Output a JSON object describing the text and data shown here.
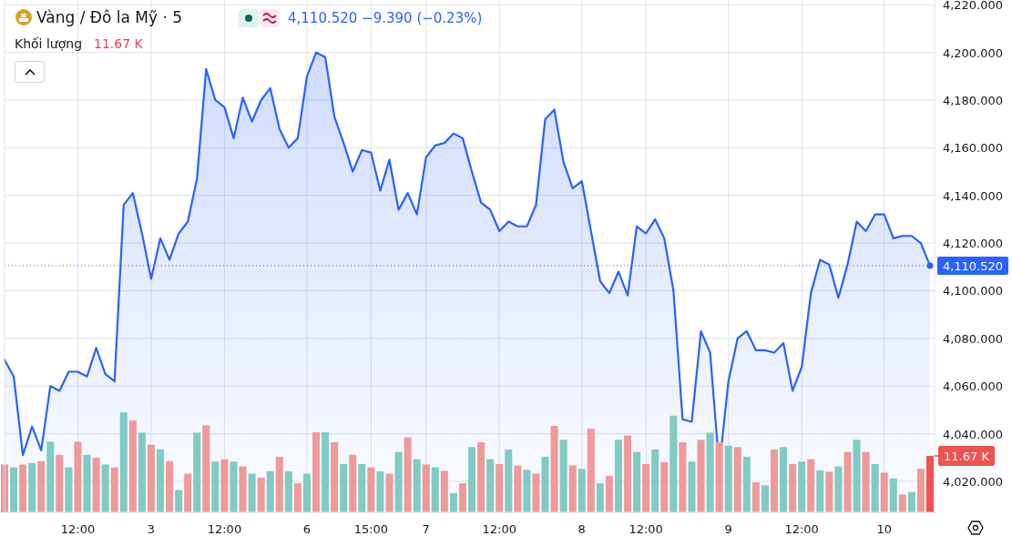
{
  "chart_data": {
    "type": "area",
    "title": "Vàng / Đô la Mỹ · 5",
    "subtitle": "4,110.520 −9.390 (−0.23%)",
    "annotations": [
      "Khối lượng",
      "11.67 K"
    ],
    "categories": [
      null,
      null,
      null,
      null,
      null,
      null,
      null,
      null,
      "12:00",
      null,
      null,
      null,
      null,
      null,
      null,
      null,
      "3",
      null,
      null,
      null,
      null,
      null,
      null,
      null,
      "12:00",
      null,
      null,
      null,
      null,
      null,
      null,
      null,
      null,
      "6",
      null,
      null,
      null,
      null,
      null,
      null,
      "15:00",
      null,
      null,
      null,
      null,
      null,
      "7",
      null,
      null,
      null,
      null,
      null,
      null,
      null,
      "12:00",
      null,
      null,
      null,
      null,
      null,
      null,
      null,
      null,
      "8",
      null,
      null,
      null,
      null,
      null,
      null,
      "12:00",
      null,
      null,
      null,
      null,
      null,
      null,
      null,
      null,
      "9",
      null,
      null,
      null,
      null,
      null,
      null,
      null,
      "12:00",
      null,
      null,
      null,
      null,
      null,
      null,
      null,
      null,
      "10",
      null,
      null,
      null,
      null,
      null
    ],
    "ylim": [
      4007,
      4222
    ],
    "yticks": [
      {
        "value": 4020,
        "label": "4,020.000"
      },
      {
        "value": 4040,
        "label": "4,040.000"
      },
      {
        "value": 4060,
        "label": "4,060.000"
      },
      {
        "value": 4080,
        "label": "4,080.000"
      },
      {
        "value": 4100,
        "label": "4,100.000"
      },
      {
        "value": 4120,
        "label": "4,120.000"
      },
      {
        "value": 4140,
        "label": "4,140.000"
      },
      {
        "value": 4160,
        "label": "4,160.000"
      },
      {
        "value": 4180,
        "label": "4,180.000"
      },
      {
        "value": 4200,
        "label": "4,200.000"
      },
      {
        "value": 4220,
        "label": "4,220.000"
      }
    ],
    "y2lim": [
      0,
      106
    ],
    "y2ticks": [
      {
        "value": 11.67,
        "label": "11.67 K"
      }
    ],
    "grid": true,
    "ref_lines": [
      {
        "axis": "y",
        "value": 4110.52,
        "label": "4,110.520",
        "color": "#2962ff",
        "line_style": "dotted"
      }
    ],
    "series": [
      {
        "color": "#2962ff",
        "values": [
          4071,
          4064,
          4031,
          4043,
          4033,
          4060,
          4058,
          4066,
          4066,
          4064,
          4076,
          4065,
          4062,
          4136,
          4141,
          4124,
          4105,
          4122,
          4113,
          4124,
          4129,
          4147,
          4193,
          4180,
          4177,
          4164,
          4181,
          4171,
          4180,
          4185,
          4168,
          4160,
          4164,
          4190,
          4200,
          4198,
          4173,
          4162,
          4150,
          4159,
          4158,
          4142,
          4155,
          4134,
          4141,
          4132,
          4156,
          4161,
          4162,
          4166,
          4164,
          4150,
          4137,
          4134,
          4125,
          4129,
          4127,
          4127,
          4136,
          4172,
          4176,
          4154,
          4143,
          4146,
          4125,
          4104,
          4099,
          4108,
          4098,
          4127,
          4124,
          4130,
          4122,
          4100,
          4046,
          4045,
          4083,
          4074,
          4026,
          4062,
          4080,
          4083,
          4075,
          4075,
          4074,
          4078,
          4058,
          4068,
          4099,
          4113,
          4111,
          4097,
          4111,
          4129,
          4125,
          4132,
          4132,
          4122,
          4123,
          4123,
          4120,
          4110.52
        ]
      },
      {
        "type": "bar",
        "axis": "y2",
        "values": [
          9.9,
          9.3,
          9.9,
          10.2,
          10.6,
          14.6,
          11.9,
          9.3,
          14.6,
          11.9,
          11.3,
          9.9,
          9.3,
          20.7,
          19.0,
          16.5,
          14.0,
          13.0,
          10.6,
          4.6,
          8.0,
          16.5,
          18.0,
          10.5,
          11.0,
          10.5,
          9.5,
          8.0,
          7.2,
          8.5,
          11.5,
          8.5,
          6.0,
          8.0,
          16.6,
          16.6,
          14.5,
          10.0,
          11.9,
          10.0,
          9.3,
          8.5,
          8.0,
          12.5,
          15.5,
          11.0,
          9.9,
          9.3,
          8.6,
          4.0,
          6.0,
          13.5,
          14.5,
          11.0,
          10.0,
          13.0,
          9.7,
          8.8,
          8.0,
          11.5,
          17.9,
          15.0,
          9.7,
          9.0,
          17.3,
          6.0,
          7.5,
          15.0,
          15.9,
          12.5,
          10.0,
          13.0,
          10.4,
          20.0,
          14.5,
          10.5,
          15.0,
          16.5,
          14.5,
          13.8,
          13.5,
          11.5,
          6.2,
          5.6,
          13.0,
          13.5,
          10.0,
          10.5,
          11.0,
          8.7,
          8.4,
          9.5,
          12.5,
          15.0,
          12.5,
          10.0,
          8.2,
          7.0,
          3.7,
          4.2,
          9.0,
          11.67
        ],
        "colors": [
          "#ef9a9a",
          "#80cbc4",
          "#ef9a9a",
          "#80cbc4",
          "#ef9a9a",
          "#80cbc4",
          "#ef9a9a",
          "#80cbc4",
          "#ef9a9a",
          "#80cbc4",
          "#ef9a9a",
          "#80cbc4",
          "#ef9a9a",
          "#80cbc4",
          "#ef9a9a",
          "#80cbc4",
          "#ef9a9a",
          "#80cbc4",
          "#ef9a9a",
          "#80cbc4",
          "#ef9a9a",
          "#80cbc4",
          "#ef9a9a",
          "#80cbc4",
          "#ef9a9a",
          "#80cbc4",
          "#ef9a9a",
          "#80cbc4",
          "#ef9a9a",
          "#80cbc4",
          "#ef9a9a",
          "#80cbc4",
          "#ef9a9a",
          "#80cbc4",
          "#ef9a9a",
          "#80cbc4",
          "#ef9a9a",
          "#80cbc4",
          "#ef9a9a",
          "#80cbc4",
          "#ef9a9a",
          "#80cbc4",
          "#ef9a9a",
          "#80cbc4",
          "#ef9a9a",
          "#80cbc4",
          "#ef9a9a",
          "#80cbc4",
          "#ef9a9a",
          "#80cbc4",
          "#ef9a9a",
          "#80cbc4",
          "#ef9a9a",
          "#80cbc4",
          "#ef9a9a",
          "#80cbc4",
          "#ef9a9a",
          "#80cbc4",
          "#ef9a9a",
          "#80cbc4",
          "#ef9a9a",
          "#80cbc4",
          "#ef9a9a",
          "#80cbc4",
          "#ef9a9a",
          "#80cbc4",
          "#ef9a9a",
          "#80cbc4",
          "#ef9a9a",
          "#80cbc4",
          "#ef9a9a",
          "#80cbc4",
          "#ef9a9a",
          "#80cbc4",
          "#ef9a9a",
          "#80cbc4",
          "#ef9a9a",
          "#80cbc4",
          "#ef9a9a",
          "#80cbc4",
          "#ef9a9a",
          "#80cbc4",
          "#ef9a9a",
          "#80cbc4",
          "#ef9a9a",
          "#80cbc4",
          "#ef9a9a",
          "#80cbc4",
          "#ef9a9a",
          "#80cbc4",
          "#ef9a9a",
          "#80cbc4",
          "#ef9a9a",
          "#80cbc4",
          "#ef9a9a",
          "#80cbc4",
          "#ef9a9a",
          "#80cbc4",
          "#ef9a9a",
          "#80cbc4",
          "#ef9a9a",
          "#ef5350"
        ]
      }
    ]
  }
}
